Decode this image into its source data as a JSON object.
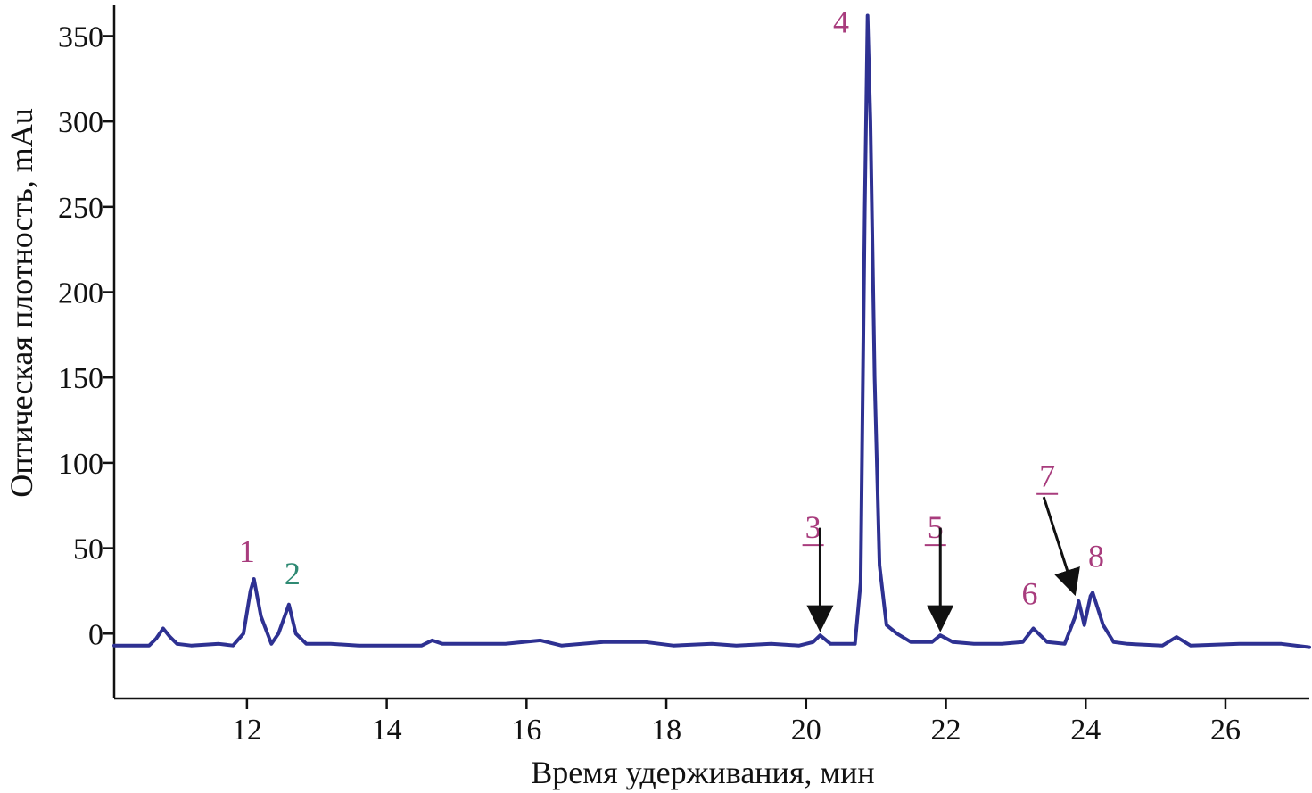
{
  "chart_data": {
    "type": "line",
    "xlabel": "Время удерживания, мин",
    "ylabel": "Оптическая плотность, mAu",
    "xlim": [
      10.1,
      27.2
    ],
    "ylim": [
      -38,
      368
    ],
    "x_ticks": [
      12,
      14,
      16,
      18,
      20,
      22,
      24,
      26
    ],
    "y_ticks": [
      0,
      50,
      100,
      150,
      200,
      250,
      300,
      350
    ],
    "grid": false,
    "line_color": "#2e3192",
    "series": [
      {
        "x": [
          10.1,
          10.6,
          10.7,
          10.8,
          10.9,
          11.0,
          11.2,
          11.6,
          11.8,
          11.95,
          12.05,
          12.1,
          12.2,
          12.35,
          12.45,
          12.6,
          12.7,
          12.85,
          13.2,
          13.6,
          14.0,
          14.5,
          14.65,
          14.8,
          15.3,
          15.7,
          16.2,
          16.5,
          17.1,
          17.7,
          18.1,
          18.65,
          19.0,
          19.5,
          19.9,
          20.1,
          20.2,
          20.35,
          20.7,
          20.78,
          20.84,
          20.88,
          20.92,
          20.98,
          21.05,
          21.15,
          21.3,
          21.5,
          21.8,
          21.92,
          22.1,
          22.4,
          22.8,
          23.1,
          23.25,
          23.45,
          23.7,
          23.85,
          23.9,
          23.98,
          24.07,
          24.1,
          24.25,
          24.4,
          24.6,
          25.1,
          25.3,
          25.5,
          26.2,
          26.8,
          27.2
        ],
        "y": [
          -7,
          -7,
          -3,
          3,
          -2,
          -6,
          -7,
          -6,
          -7,
          0,
          25,
          32,
          10,
          -6,
          0,
          17,
          0,
          -6,
          -6,
          -7,
          -7,
          -7,
          -4,
          -6,
          -6,
          -6,
          -4,
          -7,
          -5,
          -5,
          -7,
          -6,
          -7,
          -6,
          -7,
          -5,
          -1,
          -6,
          -6,
          30,
          250,
          362,
          300,
          150,
          40,
          5,
          0,
          -5,
          -5,
          -1,
          -5,
          -6,
          -6,
          -5,
          3,
          -5,
          -6,
          10,
          19,
          5,
          22,
          24,
          5,
          -5,
          -6,
          -7,
          -2,
          -7,
          -6,
          -6,
          -8
        ]
      }
    ],
    "annotations": [
      {
        "text": "1",
        "x": 12.0,
        "y": 42,
        "color": "#a83c7d",
        "underline": false,
        "arrow": null
      },
      {
        "text": "2",
        "x": 12.65,
        "y": 29,
        "color": "#2f8a73",
        "underline": false,
        "arrow": null
      },
      {
        "text": "3",
        "x": 20.1,
        "y": 56,
        "color": "#a83c7d",
        "underline": true,
        "arrow": {
          "x1": 20.2,
          "y1": 62,
          "x2": 20.2,
          "y2": 4
        }
      },
      {
        "text": "4",
        "x": 20.5,
        "y": 352,
        "color": "#a83c7d",
        "underline": false,
        "arrow": null
      },
      {
        "text": "5",
        "x": 21.85,
        "y": 56,
        "color": "#a83c7d",
        "underline": true,
        "arrow": {
          "x1": 21.92,
          "y1": 62,
          "x2": 21.92,
          "y2": 4
        }
      },
      {
        "text": "6",
        "x": 23.2,
        "y": 17,
        "color": "#a83c7d",
        "underline": false,
        "arrow": null
      },
      {
        "text": "7",
        "x": 23.45,
        "y": 86,
        "color": "#a83c7d",
        "underline": true,
        "arrow": {
          "x1": 23.4,
          "y1": 80,
          "x2": 23.83,
          "y2": 25
        }
      },
      {
        "text": "8",
        "x": 24.15,
        "y": 39,
        "color": "#a83c7d",
        "underline": false,
        "arrow": null
      }
    ]
  }
}
